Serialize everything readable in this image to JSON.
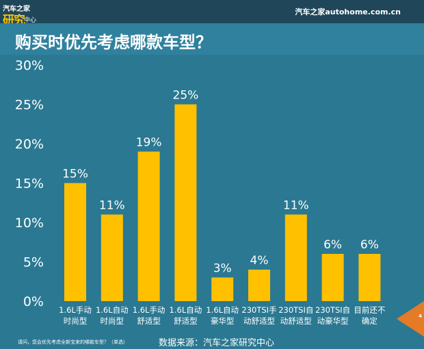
{
  "header": {
    "logo_top": "汽车之家",
    "logo_main": "研究",
    "logo_sub": "中心",
    "site": "汽车之家autohome.com.cn"
  },
  "page_number": "4",
  "footer": {
    "question": "请问，您会优先考虑全新宝来的哪款车型？（单选）",
    "source": "数据来源：汽车之家研究中心"
  },
  "colors": {
    "bar": "#ffc000",
    "background": "#2b7892",
    "header": "#1f4759",
    "pager": "#e57b26"
  },
  "chart_data": {
    "type": "bar",
    "title": "购买时优先考虑哪款车型？",
    "categories": [
      [
        "1.6L手动",
        "时尚型"
      ],
      [
        "1.6L自动",
        "时尚型"
      ],
      [
        "1.6L手动",
        "舒适型"
      ],
      [
        "1.6L自动",
        "舒适型"
      ],
      [
        "1.6L自动",
        "豪华型"
      ],
      [
        "230TSI手",
        "动舒适型"
      ],
      [
        "230TSI自",
        "动舒适型"
      ],
      [
        "230TSI自",
        "动豪华型"
      ],
      [
        "目前还不",
        "确定"
      ]
    ],
    "values": [
      15,
      11,
      19,
      25,
      3,
      4,
      11,
      6,
      6
    ],
    "data_labels": [
      "15%",
      "11%",
      "19%",
      "25%",
      "3%",
      "4%",
      "11%",
      "6%",
      "6%"
    ],
    "yticks": [
      "0%",
      "5%",
      "10%",
      "15%",
      "20%",
      "25%",
      "30%"
    ],
    "ylim": [
      0,
      30
    ],
    "grid": false,
    "legend": "none"
  }
}
